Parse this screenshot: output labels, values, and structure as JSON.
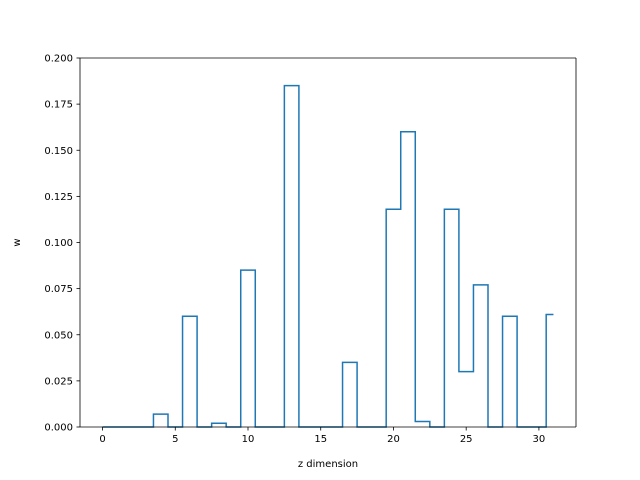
{
  "chart_data": {
    "type": "step",
    "title": "",
    "xlabel": "z dimension",
    "ylabel": "w",
    "xlim": [
      -1.55,
      32.55
    ],
    "ylim": [
      0.0,
      0.2
    ],
    "xticks": [
      0,
      5,
      10,
      15,
      20,
      25,
      30
    ],
    "xtick_labels": [
      "0",
      "5",
      "10",
      "15",
      "20",
      "25",
      "30"
    ],
    "yticks": [
      0.0,
      0.025,
      0.05,
      0.075,
      0.1,
      0.125,
      0.15,
      0.175,
      0.2
    ],
    "ytick_labels": [
      "0.000",
      "0.025",
      "0.050",
      "0.075",
      "0.100",
      "0.125",
      "0.150",
      "0.175",
      "0.200"
    ],
    "step_where": "mid",
    "grid": false,
    "legend": false,
    "line_color": "#1f77b4",
    "x": [
      0,
      1,
      2,
      3,
      4,
      5,
      6,
      7,
      8,
      9,
      10,
      11,
      12,
      13,
      14,
      15,
      16,
      17,
      18,
      19,
      20,
      21,
      22,
      23,
      24,
      25,
      26,
      27,
      28,
      29,
      30,
      31
    ],
    "values": [
      0.0,
      0.0,
      0.0,
      0.0,
      0.007,
      0.0,
      0.06,
      0.0,
      0.002,
      0.0,
      0.085,
      0.0,
      0.0,
      0.185,
      0.0,
      0.0,
      0.0,
      0.035,
      0.0,
      0.0,
      0.118,
      0.16,
      0.003,
      0.0,
      0.118,
      0.03,
      0.077,
      0.0,
      0.06,
      0.0,
      0.0,
      0.061
    ]
  }
}
